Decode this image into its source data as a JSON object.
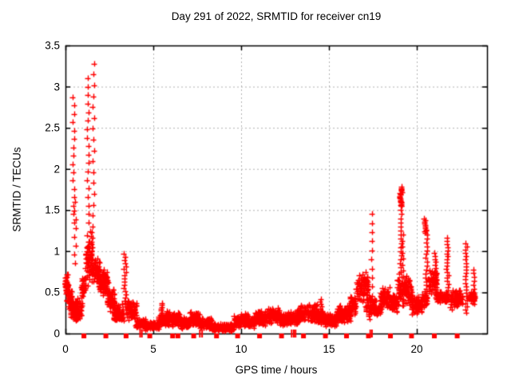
{
  "chart_data": {
    "type": "scatter",
    "title": "Day 291 of 2022, SRMTID for receiver cn19",
    "xlabel": "GPS time / hours",
    "ylabel": "SRMTID / TECUs",
    "xlim": [
      0,
      24
    ],
    "ylim": [
      0,
      3.5
    ],
    "xticks": {
      "values": [
        0,
        5,
        10,
        15,
        20
      ],
      "labels": [
        "0",
        "5",
        "10",
        "15",
        "20"
      ]
    },
    "yticks": {
      "values": [
        0,
        0.5,
        1,
        1.5,
        2,
        2.5,
        3,
        3.5
      ],
      "labels": [
        "0",
        "0.5",
        "1",
        "1.5",
        "2",
        "2.5",
        "3",
        "3.5"
      ]
    },
    "grid": true,
    "legend_position": "none",
    "marker": {
      "glyph": "plus",
      "size": 7,
      "color": "#ff0000"
    },
    "gap_marker": {
      "glyph": "filled-square",
      "size": 6,
      "color": "#ff0000"
    },
    "grid_color": "#b0b0b0",
    "border_color": "#000000",
    "series": {
      "band_segments_t0_t1_vmin_vmax_n": [
        [
          0.0,
          0.2,
          0.45,
          0.73,
          40
        ],
        [
          0.1,
          0.4,
          0.28,
          0.55,
          45
        ],
        [
          0.3,
          0.62,
          0.15,
          0.42,
          50
        ],
        [
          0.55,
          0.95,
          0.14,
          0.45,
          55
        ],
        [
          0.9,
          1.15,
          0.38,
          0.75,
          35
        ],
        [
          1.15,
          1.55,
          0.55,
          1.28,
          60
        ],
        [
          1.45,
          1.95,
          0.55,
          0.95,
          70
        ],
        [
          1.9,
          2.45,
          0.42,
          0.8,
          75
        ],
        [
          2.4,
          2.8,
          0.25,
          0.55,
          55
        ],
        [
          2.75,
          3.3,
          0.12,
          0.38,
          70
        ],
        [
          3.5,
          4.05,
          0.15,
          0.42,
          70
        ],
        [
          4.0,
          4.55,
          0.06,
          0.2,
          65
        ],
        [
          4.5,
          5.3,
          0.03,
          0.15,
          90
        ],
        [
          5.3,
          5.75,
          0.08,
          0.25,
          50
        ],
        [
          5.7,
          6.5,
          0.08,
          0.28,
          90
        ],
        [
          6.5,
          7.1,
          0.05,
          0.2,
          70
        ],
        [
          7.1,
          7.65,
          0.08,
          0.28,
          65
        ],
        [
          7.6,
          8.3,
          0.05,
          0.2,
          80
        ],
        [
          8.3,
          9.6,
          0.02,
          0.13,
          140
        ],
        [
          9.6,
          10.45,
          0.06,
          0.26,
          95
        ],
        [
          10.4,
          10.75,
          0.06,
          0.2,
          40
        ],
        [
          10.7,
          11.4,
          0.08,
          0.28,
          80
        ],
        [
          11.4,
          12.25,
          0.1,
          0.32,
          95
        ],
        [
          12.2,
          12.7,
          0.08,
          0.26,
          55
        ],
        [
          12.65,
          13.3,
          0.08,
          0.3,
          75
        ],
        [
          13.3,
          14.35,
          0.12,
          0.37,
          115
        ],
        [
          14.35,
          14.75,
          0.1,
          0.3,
          45
        ],
        [
          14.75,
          15.5,
          0.08,
          0.26,
          85
        ],
        [
          15.45,
          16.25,
          0.12,
          0.35,
          90
        ],
        [
          16.2,
          16.55,
          0.2,
          0.48,
          40
        ],
        [
          16.55,
          17.25,
          0.38,
          0.75,
          80
        ],
        [
          17.1,
          17.45,
          0.15,
          0.5,
          40
        ],
        [
          17.5,
          18.0,
          0.2,
          0.42,
          55
        ],
        [
          17.95,
          18.45,
          0.3,
          0.58,
          55
        ],
        [
          18.4,
          18.9,
          0.25,
          0.48,
          55
        ],
        [
          18.9,
          19.4,
          0.3,
          0.75,
          60
        ],
        [
          19.35,
          19.75,
          0.3,
          0.68,
          45
        ],
        [
          19.7,
          20.3,
          0.22,
          0.48,
          65
        ],
        [
          20.3,
          20.6,
          0.3,
          0.55,
          35
        ],
        [
          20.65,
          21.15,
          0.45,
          0.8,
          55
        ],
        [
          21.1,
          21.75,
          0.35,
          0.52,
          70
        ],
        [
          21.9,
          22.6,
          0.28,
          0.55,
          75
        ],
        [
          22.95,
          23.35,
          0.35,
          0.52,
          45
        ]
      ],
      "spike_columns_t_w_vmin_vmax_n": [
        [
          0.47,
          0.1,
          1.35,
          2.87,
          16
        ],
        [
          0.55,
          0.12,
          0.85,
          1.6,
          8
        ],
        [
          1.28,
          0.1,
          1.35,
          3.1,
          18
        ],
        [
          1.62,
          0.12,
          1.3,
          3.28,
          16
        ],
        [
          3.4,
          0.14,
          0.25,
          0.97,
          20
        ],
        [
          5.5,
          0.1,
          0.12,
          0.37,
          12
        ],
        [
          14.55,
          0.08,
          0.15,
          0.42,
          10
        ],
        [
          17.45,
          0.05,
          0.35,
          1.45,
          11
        ],
        [
          19.1,
          0.16,
          1.55,
          1.78,
          20
        ],
        [
          19.1,
          0.08,
          0.75,
          1.6,
          18
        ],
        [
          19.2,
          0.06,
          0.4,
          1.2,
          12
        ],
        [
          20.5,
          0.14,
          1.22,
          1.4,
          10
        ],
        [
          20.55,
          0.1,
          0.35,
          1.25,
          20
        ],
        [
          21.05,
          0.1,
          0.5,
          0.98,
          14
        ],
        [
          21.75,
          0.1,
          0.45,
          1.16,
          20
        ],
        [
          22.82,
          0.12,
          0.25,
          1.1,
          22
        ],
        [
          23.25,
          0.08,
          0.45,
          0.78,
          8
        ]
      ],
      "gap_markers_t": [
        1.05,
        2.3,
        3.45,
        4.8,
        6.1,
        6.4,
        7.3,
        8.6,
        9.8,
        11.05,
        12.3,
        13.55,
        14.8,
        16.0,
        17.25,
        18.5,
        19.7,
        21.0,
        22.3
      ],
      "axis_hash_points_t": [
        4.25,
        4.35,
        7.65,
        7.78,
        12.88,
        13.0,
        13.1,
        17.35,
        17.45
      ]
    }
  }
}
